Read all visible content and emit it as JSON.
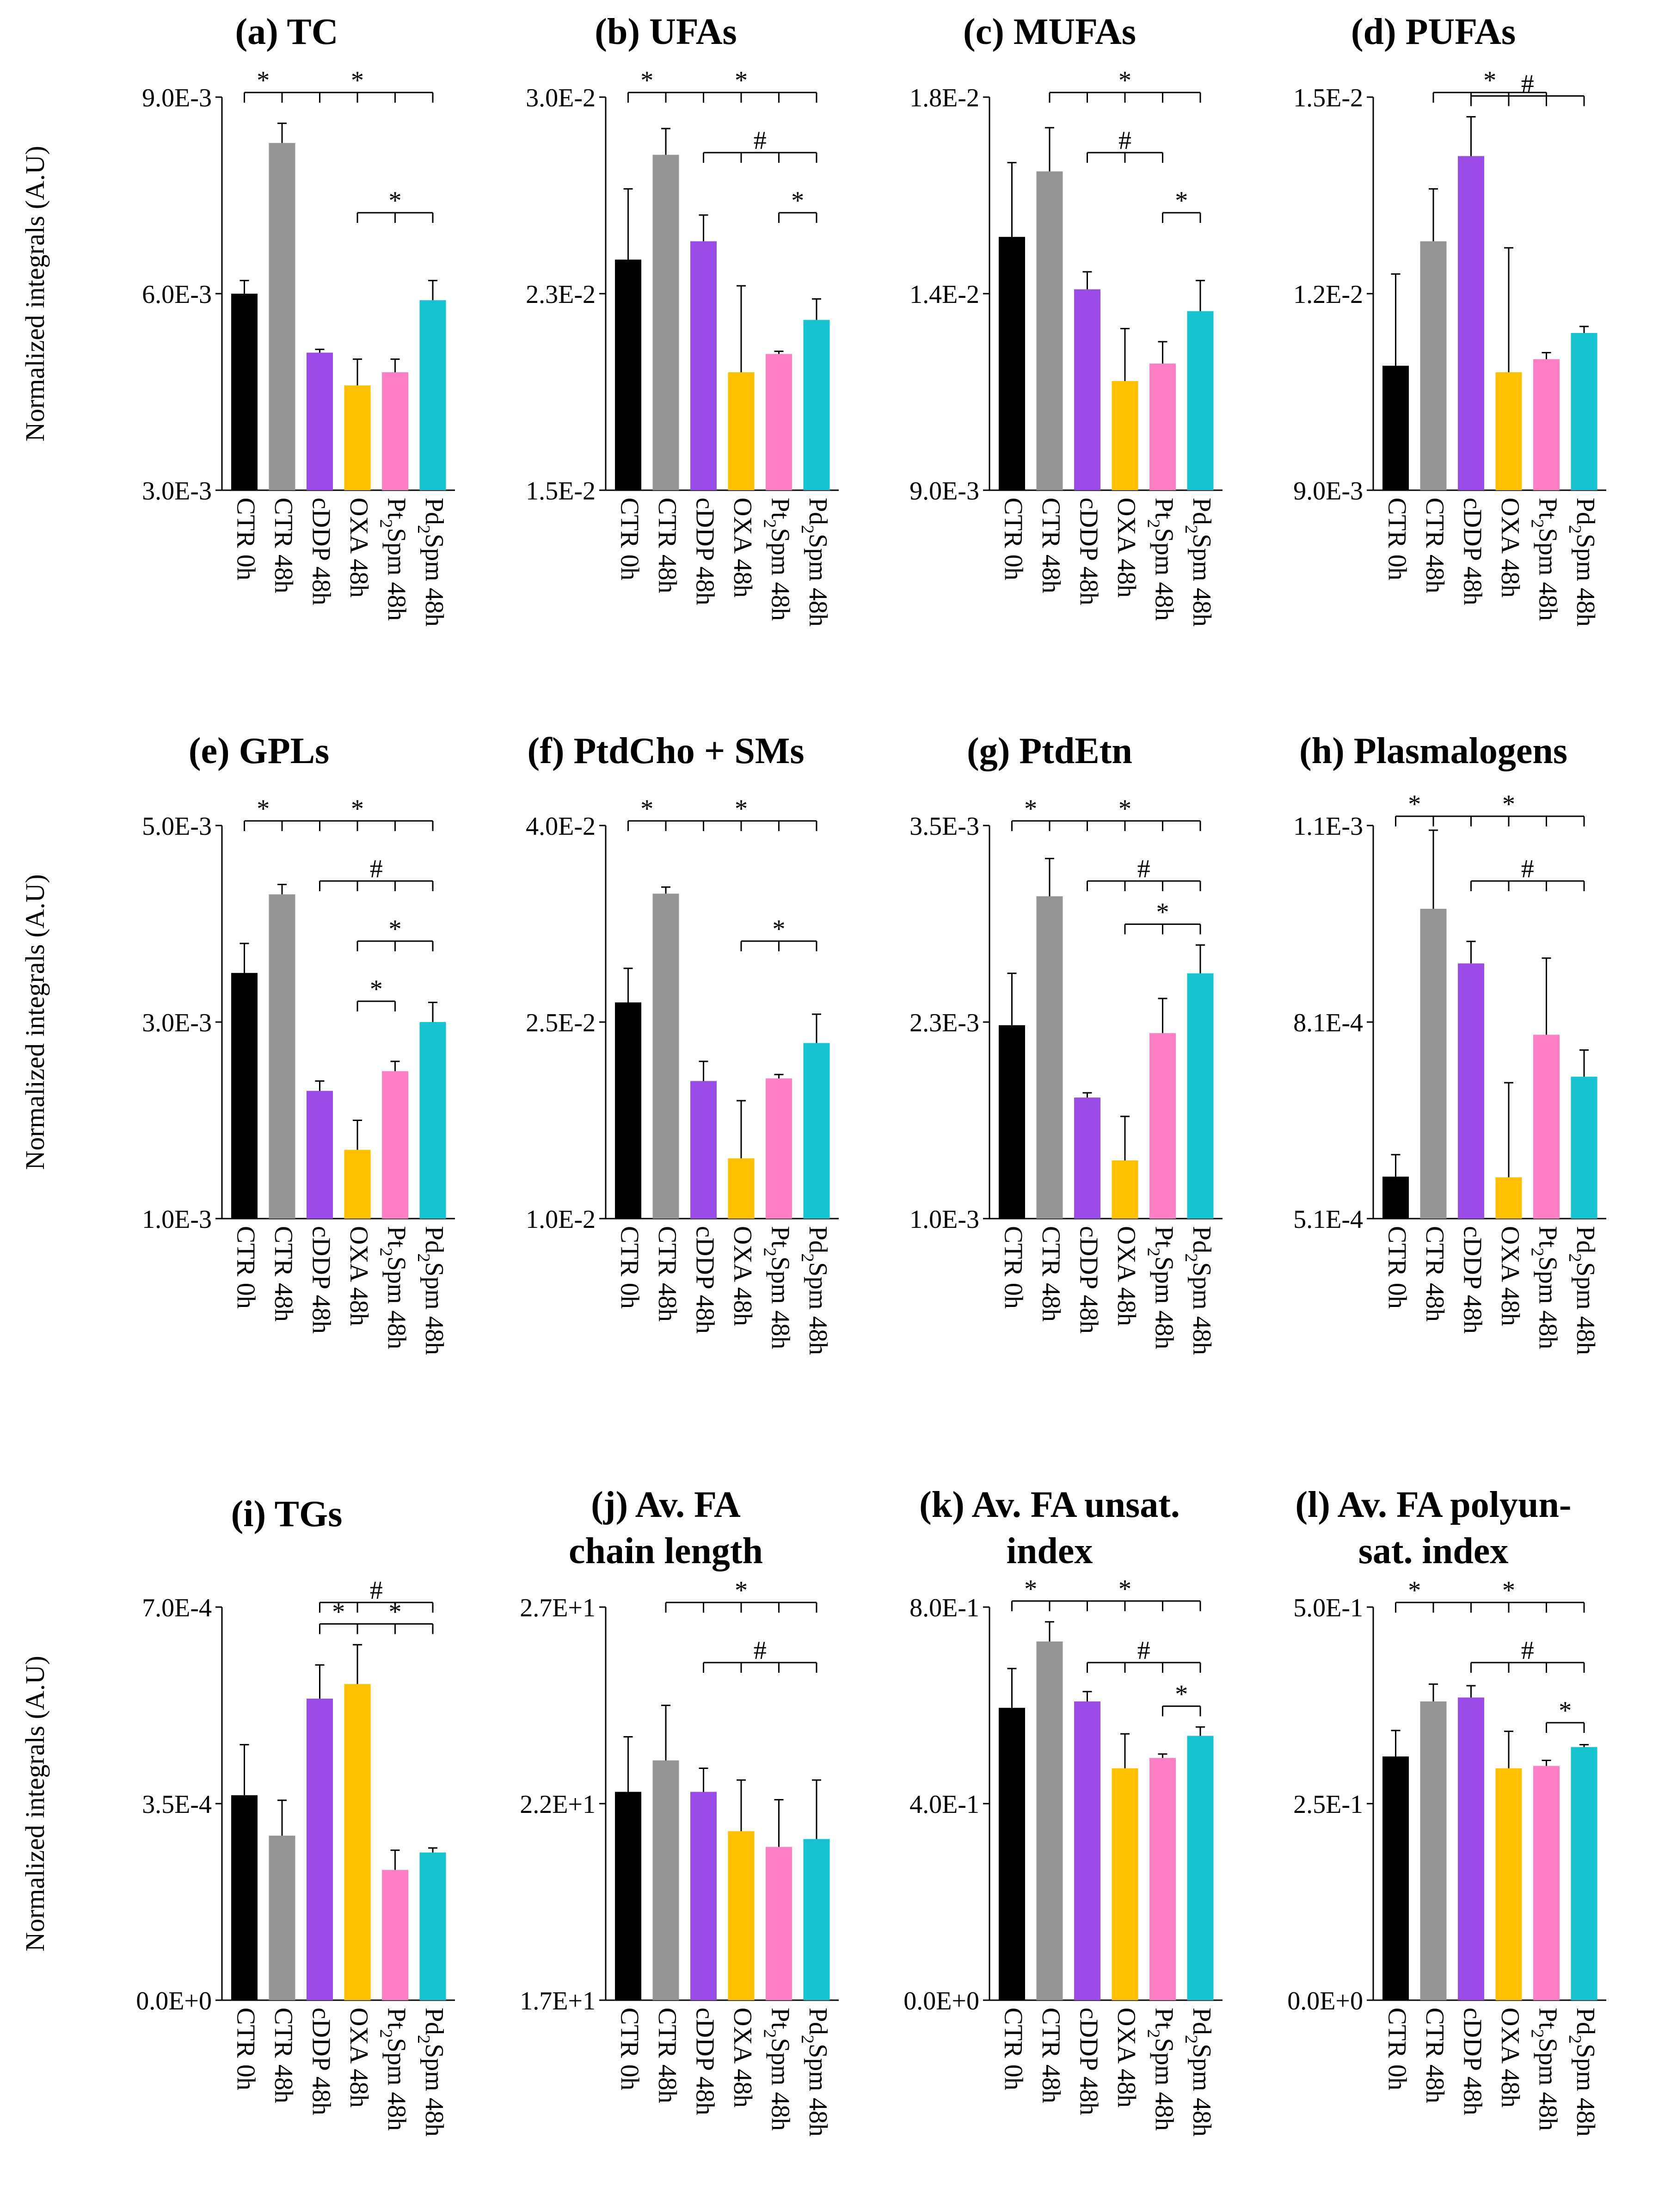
{
  "categories": [
    "CTR 0h",
    "CTR 48h",
    "cDDP 48h",
    "OXA 48h",
    "Pt2Spm 48h",
    "Pd2Spm 48h"
  ],
  "colors": [
    "#000000",
    "#959595",
    "#9b4ce6",
    "#ffc000",
    "#ff7fc6",
    "#17c3d1"
  ],
  "ylabel": "Normalized integrals (A.U)",
  "chart_data": [
    {
      "type": "bar",
      "title": "(a) TC",
      "categories": [
        "CTR 0h",
        "CTR 48h",
        "cDDP 48h",
        "OXA 48h",
        "Pt2Spm 48h",
        "Pd2Spm 48h"
      ],
      "ylabel": "Normalized integrals (A.U)",
      "yticks": [
        "3.0E-3",
        "6.0E-3",
        "9.0E-3"
      ],
      "ylim": [
        0.003,
        0.009
      ],
      "values": [
        0.006,
        0.0083,
        0.0051,
        0.0046,
        0.0048,
        0.0059
      ],
      "errors": [
        0.0002,
        0.0003,
        5e-05,
        0.0004,
        0.0002,
        0.0003
      ],
      "annotations": [
        {
          "from": 0,
          "to": 1,
          "label": "*",
          "level": 0
        },
        {
          "from": 1,
          "to": 5,
          "label": "*",
          "level": 0
        },
        {
          "from": 3,
          "to": 5,
          "label": "*",
          "level": 2
        }
      ]
    },
    {
      "type": "bar",
      "title": "(b) UFAs",
      "categories": [
        "CTR 0h",
        "CTR 48h",
        "cDDP 48h",
        "OXA 48h",
        "Pt2Spm 48h",
        "Pd2Spm 48h"
      ],
      "yticks": [
        "1.5E-2",
        "2.3E-2",
        "3.0E-2"
      ],
      "ylim": [
        0.015,
        0.03
      ],
      "values": [
        0.0238,
        0.0278,
        0.0245,
        0.0195,
        0.0202,
        0.0215
      ],
      "errors": [
        0.0027,
        0.001,
        0.001,
        0.0033,
        0.0001,
        0.0008
      ],
      "annotations": [
        {
          "from": 0,
          "to": 1,
          "label": "*",
          "level": 0
        },
        {
          "from": 1,
          "to": 5,
          "label": "*",
          "level": 0
        },
        {
          "from": 2,
          "to": 5,
          "label": "#",
          "level": 1
        },
        {
          "from": 4,
          "to": 5,
          "label": "*",
          "level": 2
        }
      ]
    },
    {
      "type": "bar",
      "title": "(c) MUFAs",
      "categories": [
        "CTR 0h",
        "CTR 48h",
        "cDDP 48h",
        "OXA 48h",
        "Pt2Spm 48h",
        "Pd2Spm 48h"
      ],
      "yticks": [
        "9.0E-3",
        "1.4E-2",
        "1.8E-2"
      ],
      "ylim": [
        0.009,
        0.018
      ],
      "values": [
        0.0148,
        0.0163,
        0.0136,
        0.0115,
        0.0119,
        0.0131
      ],
      "errors": [
        0.0017,
        0.001,
        0.0004,
        0.0012,
        0.0005,
        0.0007
      ],
      "annotations": [
        {
          "from": 1,
          "to": 5,
          "label": "*",
          "level": 0
        },
        {
          "from": 2,
          "to": 4,
          "label": "#",
          "level": 1
        },
        {
          "from": 4,
          "to": 5,
          "label": "*",
          "level": 2
        }
      ]
    },
    {
      "type": "bar",
      "title": "(d) PUFAs",
      "categories": [
        "CTR 0h",
        "CTR 48h",
        "cDDP 48h",
        "OXA 48h",
        "Pt2Spm 48h",
        "Pd2Spm 48h"
      ],
      "yticks": [
        "9.0E-3",
        "1.2E-2",
        "1.5E-2"
      ],
      "ylim": [
        0.009,
        0.015
      ],
      "values": [
        0.0109,
        0.0128,
        0.0141,
        0.0108,
        0.011,
        0.0114
      ],
      "errors": [
        0.0014,
        0.0008,
        0.0006,
        0.0019,
        0.0001,
        0.0001
      ],
      "annotations": [
        {
          "from": 1,
          "to": 4,
          "label": "*",
          "level": 0
        },
        {
          "from": 2,
          "to": 5,
          "label": "#",
          "level": 1
        }
      ]
    },
    {
      "type": "bar",
      "title": "(e) GPLs",
      "categories": [
        "CTR 0h",
        "CTR 48h",
        "cDDP 48h",
        "OXA 48h",
        "Pt2Spm 48h",
        "Pd2Spm 48h"
      ],
      "ylabel": "Normalized integrals (A.U)",
      "yticks": [
        "1.0E-3",
        "3.0E-3",
        "5.0E-3"
      ],
      "ylim": [
        0.001,
        0.005
      ],
      "values": [
        0.0035,
        0.0043,
        0.0023,
        0.0017,
        0.0025,
        0.003
      ],
      "errors": [
        0.0003,
        0.0001,
        0.0001,
        0.0003,
        0.0001,
        0.0002
      ],
      "annotations": [
        {
          "from": 0,
          "to": 1,
          "label": "*",
          "level": 0
        },
        {
          "from": 1,
          "to": 5,
          "label": "*",
          "level": 0
        },
        {
          "from": 2,
          "to": 5,
          "label": "#",
          "level": 1
        },
        {
          "from": 3,
          "to": 5,
          "label": "*",
          "level": 2
        },
        {
          "from": 3,
          "to": 4,
          "label": "*",
          "level": 3
        }
      ]
    },
    {
      "type": "bar",
      "title": "(f) PtdCho + SMs",
      "categories": [
        "CTR 0h",
        "CTR 48h",
        "cDDP 48h",
        "OXA 48h",
        "Pt2Spm 48h",
        "Pd2Spm 48h"
      ],
      "yticks": [
        "1.0E-2",
        "2.5E-2",
        "4.0E-2"
      ],
      "ylim": [
        0.01,
        0.04
      ],
      "values": [
        0.0265,
        0.0348,
        0.0205,
        0.0146,
        0.0207,
        0.0234
      ],
      "errors": [
        0.0026,
        0.0005,
        0.0015,
        0.0044,
        0.0003,
        0.0022
      ],
      "annotations": [
        {
          "from": 0,
          "to": 1,
          "label": "*",
          "level": 0
        },
        {
          "from": 1,
          "to": 5,
          "label": "*",
          "level": 0
        },
        {
          "from": 3,
          "to": 5,
          "label": "*",
          "level": 2
        }
      ]
    },
    {
      "type": "bar",
      "title": "(g) PtdEtn",
      "categories": [
        "CTR 0h",
        "CTR 48h",
        "cDDP 48h",
        "OXA 48h",
        "Pt2Spm 48h",
        "Pd2Spm 48h"
      ],
      "yticks": [
        "1.0E-3",
        "2.3E-3",
        "3.5E-3"
      ],
      "ylim": [
        0.001,
        0.0035
      ],
      "values": [
        0.00223,
        0.00305,
        0.00177,
        0.00137,
        0.00218,
        0.00256
      ],
      "errors": [
        0.00033,
        0.00024,
        3e-05,
        0.00028,
        0.00022,
        0.00018
      ],
      "annotations": [
        {
          "from": 0,
          "to": 1,
          "label": "*",
          "level": 0
        },
        {
          "from": 1,
          "to": 5,
          "label": "*",
          "level": 0
        },
        {
          "from": 2,
          "to": 5,
          "label": "#",
          "level": 1
        },
        {
          "from": 3,
          "to": 5,
          "label": "*",
          "level": 2
        }
      ]
    },
    {
      "type": "bar",
      "title": "(h) Plasmalogens",
      "categories": [
        "CTR 0h",
        "CTR 48h",
        "cDDP 48h",
        "OXA 48h",
        "Pt2Spm 48h",
        "Pd2Spm 48h"
      ],
      "yticks": [
        "5.1E-4",
        "8.1E-4",
        "1.1E-3"
      ],
      "ylim": [
        0.00051,
        0.0011
      ],
      "values": [
        0.000573,
        0.000975,
        0.000893,
        0.000572,
        0.000786,
        0.000723
      ],
      "errors": [
        3.3e-05,
        0.000118,
        3.3e-05,
        0.000142,
        0.000115,
        4e-05
      ],
      "annotations": [
        {
          "from": 0,
          "to": 1,
          "label": "*",
          "level": 0
        },
        {
          "from": 1,
          "to": 5,
          "label": "*",
          "level": 0
        },
        {
          "from": 2,
          "to": 5,
          "label": "#",
          "level": 1
        }
      ]
    },
    {
      "type": "bar",
      "title": "(i) TGs",
      "categories": [
        "CTR 0h",
        "CTR 48h",
        "cDDP 48h",
        "OXA 48h",
        "Pt2Spm 48h",
        "Pd2Spm 48h"
      ],
      "ylabel": "Normalized integrals (A.U)",
      "yticks": [
        "0.0E+0",
        "3.5E-4",
        "7.0E-4"
      ],
      "ylim": [
        0,
        0.0007
      ],
      "values": [
        0.000365,
        0.000293,
        0.000537,
        0.000563,
        0.000232,
        0.000263
      ],
      "errors": [
        9e-05,
        6.3e-05,
        6e-05,
        7e-05,
        3.5e-05,
        8e-06
      ],
      "annotations": [
        {
          "from": 2,
          "to": 5,
          "label": "#",
          "level": 0
        },
        {
          "from": 2,
          "to": 3,
          "label": "*",
          "level": 1
        },
        {
          "from": 3,
          "to": 5,
          "label": "*",
          "level": 1
        }
      ]
    },
    {
      "type": "bar",
      "title": "(j) Av. FA chain length",
      "categories": [
        "CTR 0h",
        "CTR 48h",
        "cDDP 48h",
        "OXA 48h",
        "Pt2Spm 48h",
        "Pd2Spm 48h"
      ],
      "yticks": [
        "1.7E+1",
        "2.2E+1",
        "2.7E+1"
      ],
      "ylim": [
        17,
        27
      ],
      "values": [
        22.3,
        23.1,
        22.3,
        21.3,
        20.9,
        21.1
      ],
      "errors": [
        1.4,
        1.4,
        0.6,
        1.3,
        1.2,
        1.5
      ],
      "annotations": [
        {
          "from": 1,
          "to": 5,
          "label": "*",
          "level": 0
        },
        {
          "from": 2,
          "to": 5,
          "label": "#",
          "level": 1
        }
      ]
    },
    {
      "type": "bar",
      "title": "(k) Av. FA unsat. index",
      "categories": [
        "CTR 0h",
        "CTR 48h",
        "cDDP 48h",
        "OXA 48h",
        "Pt2Spm 48h",
        "Pd2Spm 48h"
      ],
      "yticks": [
        "0.0E+0",
        "4.0E-1",
        "8.0E-1"
      ],
      "ylim": [
        0,
        0.8
      ],
      "values": [
        0.595,
        0.73,
        0.608,
        0.472,
        0.493,
        0.538
      ],
      "errors": [
        0.08,
        0.04,
        0.02,
        0.07,
        0.008,
        0.018
      ],
      "annotations": [
        {
          "from": 0,
          "to": 1,
          "label": "*",
          "level": 0
        },
        {
          "from": 1,
          "to": 5,
          "label": "*",
          "level": 0
        },
        {
          "from": 2,
          "to": 5,
          "label": "#",
          "level": 1
        },
        {
          "from": 4,
          "to": 5,
          "label": "*",
          "level": 2
        }
      ]
    },
    {
      "type": "bar",
      "title": "(l) Av. FA polyun- sat. index",
      "categories": [
        "CTR 0h",
        "CTR 48h",
        "cDDP 48h",
        "OXA 48h",
        "Pt2Spm 48h",
        "Pd2Spm 48h"
      ],
      "yticks": [
        "0.0E+0",
        "2.5E-1",
        "5.0E-1"
      ],
      "ylim": [
        0,
        0.5
      ],
      "values": [
        0.31,
        0.38,
        0.385,
        0.295,
        0.298,
        0.322
      ],
      "errors": [
        0.033,
        0.022,
        0.015,
        0.047,
        0.007,
        0.003
      ],
      "annotations": [
        {
          "from": 0,
          "to": 1,
          "label": "*",
          "level": 0
        },
        {
          "from": 1,
          "to": 5,
          "label": "*",
          "level": 0
        },
        {
          "from": 2,
          "to": 5,
          "label": "#",
          "level": 1
        },
        {
          "from": 4,
          "to": 5,
          "label": "*",
          "level": 2
        }
      ]
    }
  ]
}
